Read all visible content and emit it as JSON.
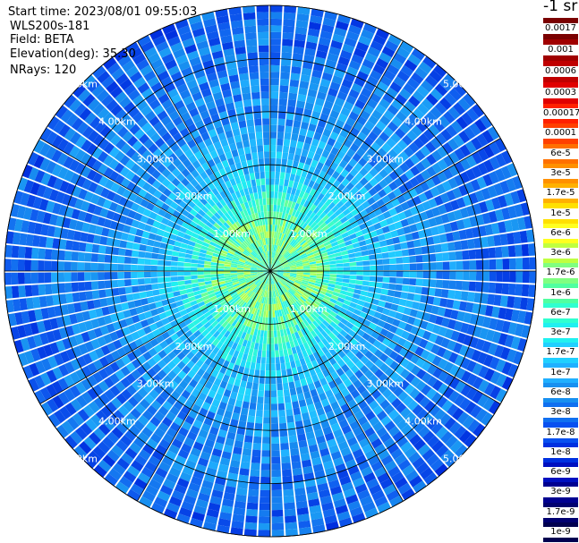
{
  "info": {
    "start_time": "Start time: 2023/08/01 09:55:03",
    "device": "WLS200s-181",
    "field": "Field: BETA",
    "elevation": "Elevation(deg): 35.30",
    "nrays": "NRays: 120"
  },
  "colorbar": {
    "title": "-1 sr",
    "labels_top": [
      "0.0017",
      "0.001",
      "0.0006",
      "0.0003"
    ],
    "labels_bottom": [
      "0.00017",
      "0.0001",
      "6e-5",
      "3e-5",
      "1.7e-5",
      "1e-5",
      "6e-6",
      "3e-6",
      "1.7e-6",
      "1e-6",
      "6e-7",
      "3e-7",
      "1.7e-7",
      "1e-7",
      "6e-8",
      "3e-8",
      "1.7e-8",
      "1e-8",
      "6e-9",
      "3e-9",
      "1.7e-9",
      "1e-9"
    ],
    "colors_top": [
      "#7a0000",
      "#a00000",
      "#c00000",
      "#e00000"
    ],
    "colors_bottom": [
      "#ff2000",
      "#ff4000",
      "#ff7000",
      "#ff9000",
      "#ffb000",
      "#ffe000",
      "#ffff20",
      "#c0ff40",
      "#80ff80",
      "#50ffa0",
      "#30ffd0",
      "#20f0f0",
      "#20d0ff",
      "#20b0ff",
      "#1890f0",
      "#1070f0",
      "#0850f0",
      "#0030e0",
      "#0010c0",
      "#000090",
      "#000070",
      "#000050"
    ]
  },
  "chart_data": {
    "type": "heatmap",
    "projection": "polar-ppi",
    "nrays": 120,
    "range_unit": "km",
    "range_rings": [
      1,
      2,
      3,
      4,
      5
    ],
    "ring_labels": [
      "1.00km",
      "2.00km",
      "3.00km",
      "4.00km",
      "5.00km"
    ],
    "spoke_directions": 12,
    "max_range_km": 5.0,
    "field": "BETA",
    "colorscale": "log",
    "value_min": 1e-09,
    "value_max": 0.0017,
    "radial_profile_log10": [
      [
        0.0,
        -6.4
      ],
      [
        0.5,
        -6.2
      ],
      [
        1.0,
        -6.3
      ],
      [
        1.5,
        -6.8
      ],
      [
        2.0,
        -7.2
      ],
      [
        3.0,
        -7.6
      ],
      [
        4.0,
        -7.8
      ],
      [
        5.0,
        -8.0
      ]
    ]
  }
}
